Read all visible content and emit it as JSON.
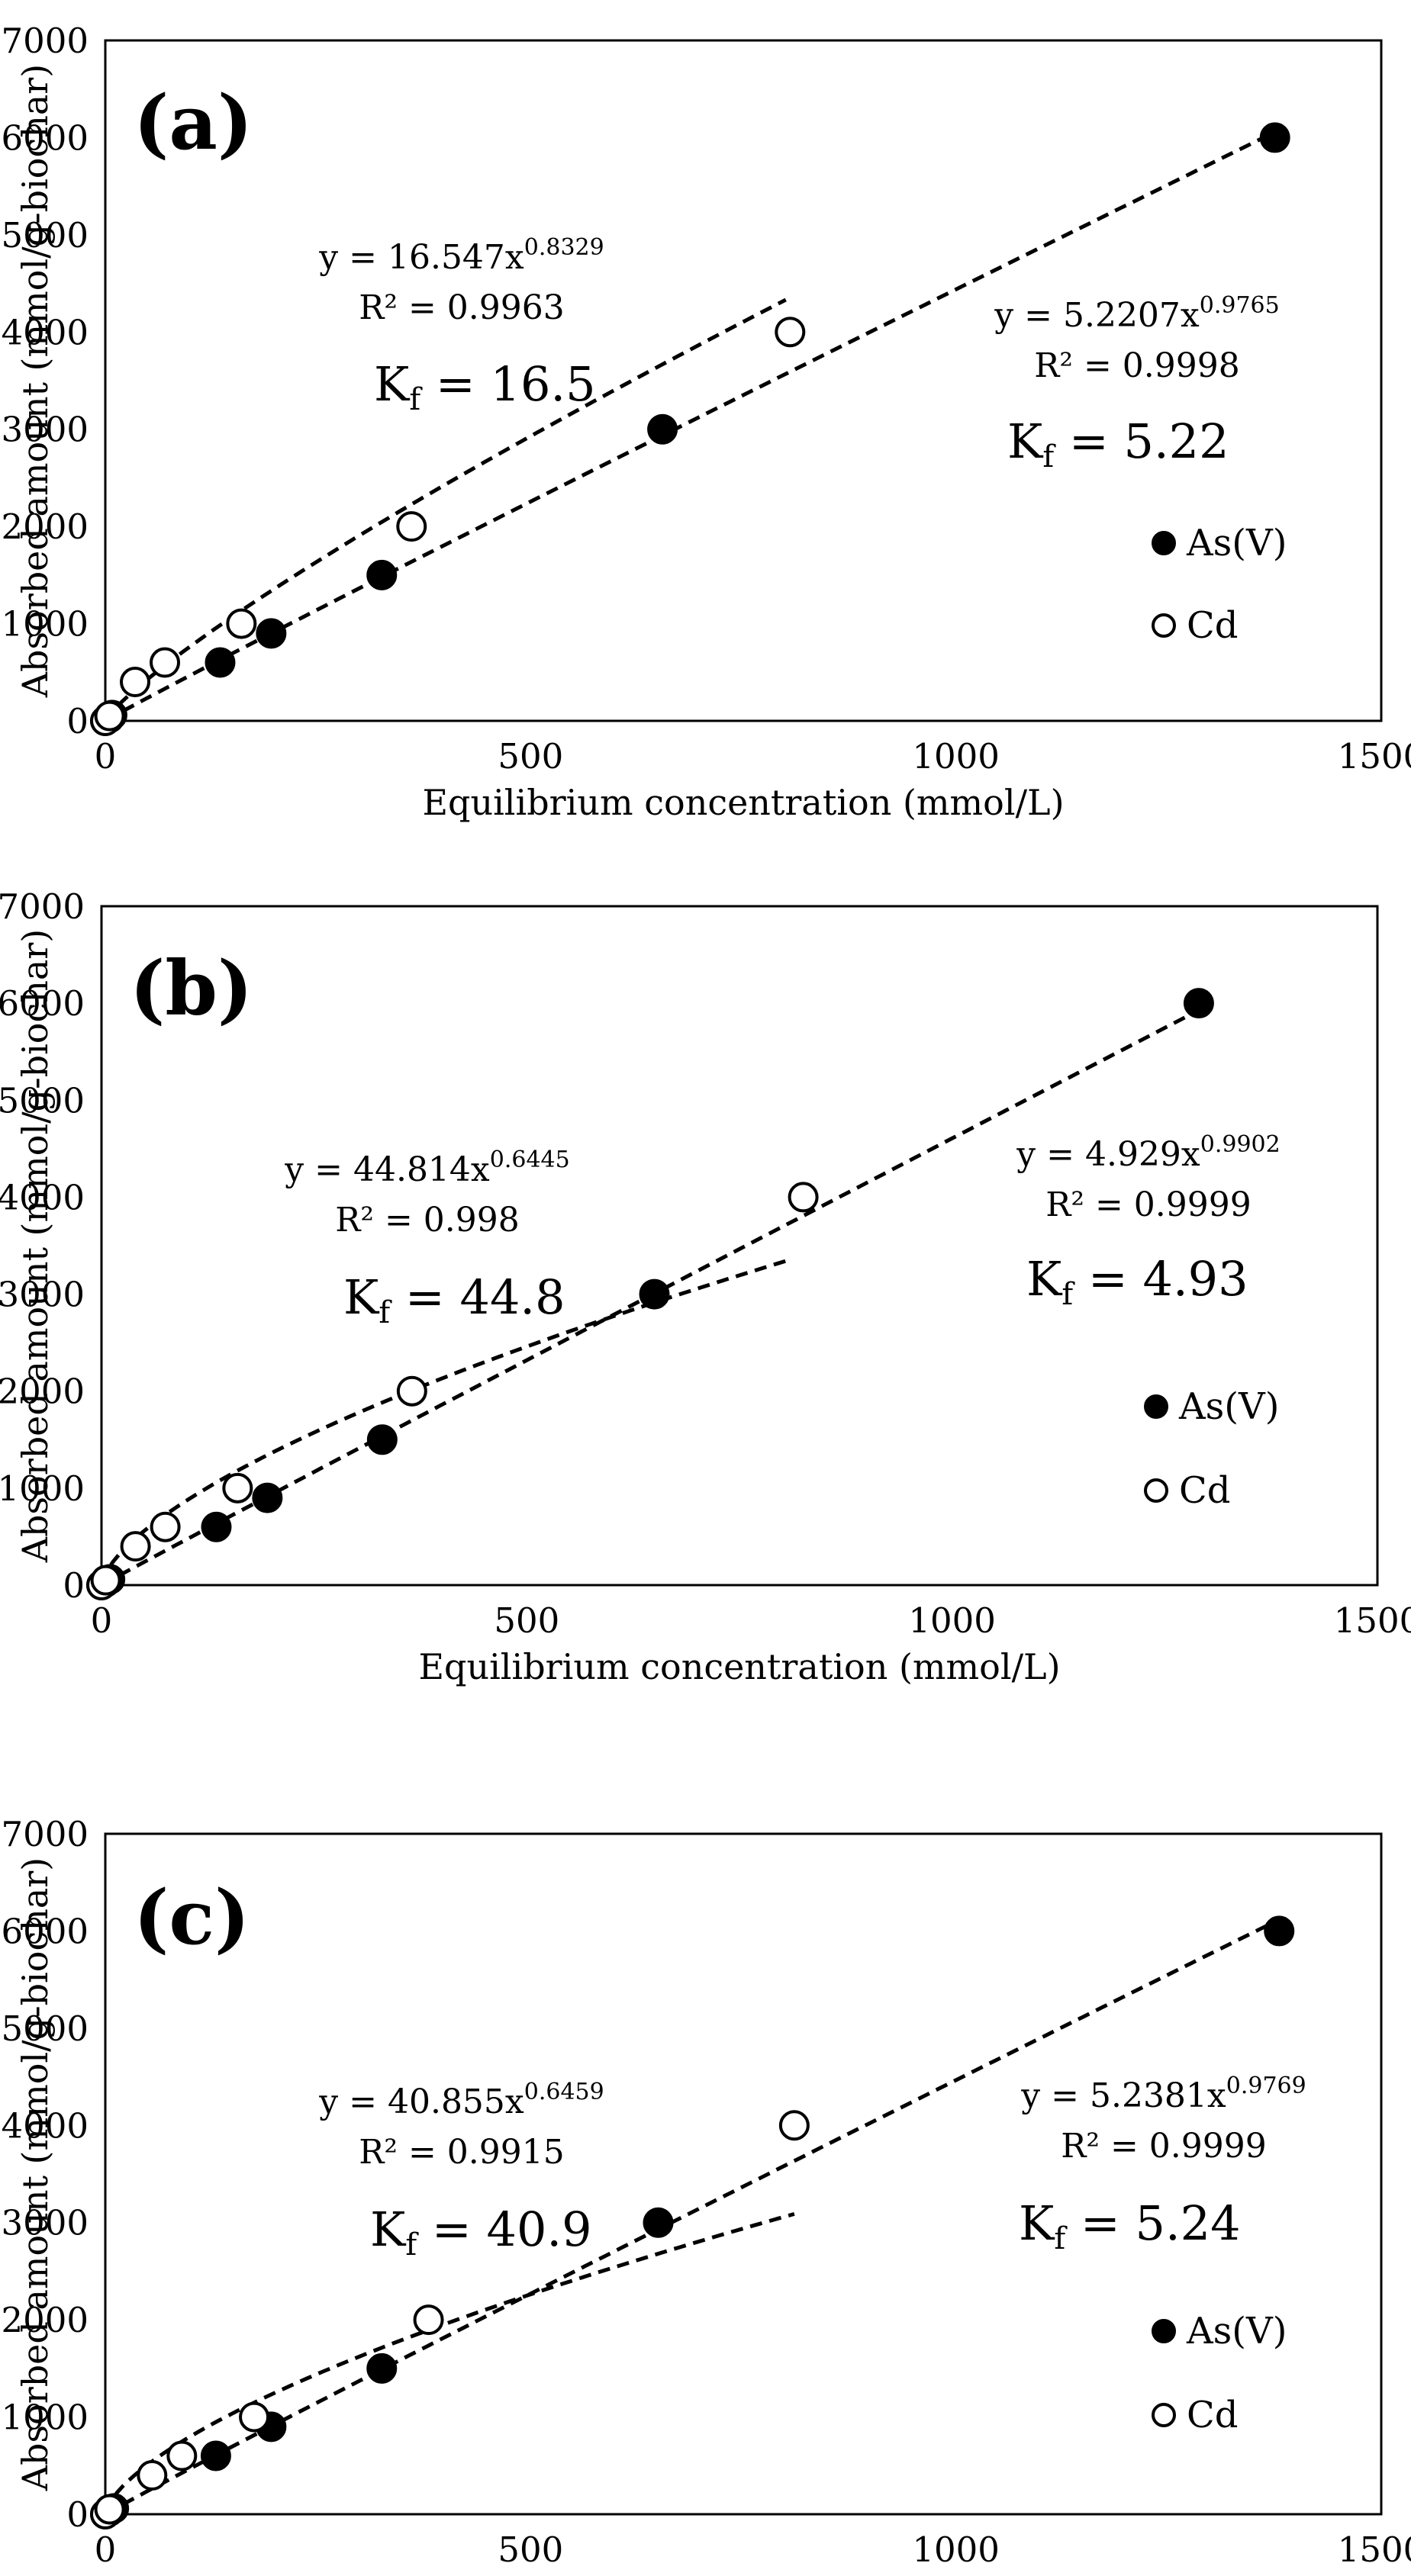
{
  "colors": {
    "ink": "#000000",
    "background": "#ffffff"
  },
  "chart_data": [
    {
      "type": "scatter",
      "panel_label": "(a)",
      "xlabel": "Equilibrium  concentration (mmol/L)",
      "ylabel": "Absorbed amount (mmol/g-biochar)",
      "xlim": [
        0,
        1500
      ],
      "ylim": [
        0,
        7000
      ],
      "xticks": [
        "0",
        "500",
        "1000",
        "1500"
      ],
      "yticks": [
        "0",
        "1000",
        "2000",
        "3000",
        "4000",
        "5000",
        "6000",
        "7000"
      ],
      "grid": false,
      "legend": {
        "position": "right-middle",
        "entries": [
          "As(V)",
          "Cd"
        ]
      },
      "series": [
        {
          "name": "As(V)",
          "marker": "filled-circle",
          "x": [
            0,
            5,
            8,
            135,
            195,
            325,
            655,
            1375
          ],
          "y": [
            0,
            30,
            60,
            600,
            900,
            1500,
            3000,
            6000
          ],
          "fit": {
            "a": 5.2207,
            "b": 0.9765,
            "x_range": [
              0,
              1375
            ]
          },
          "equation": "y = 5.2207x",
          "exponent": "0.9765",
          "r2": "R² = 0.9998",
          "kf": "5.22"
        },
        {
          "name": "Cd",
          "marker": "open-circle",
          "x": [
            0,
            5,
            35,
            70,
            160,
            360,
            805
          ],
          "y": [
            0,
            50,
            400,
            600,
            1000,
            2000,
            4000
          ],
          "fit": {
            "a": 16.547,
            "b": 0.8329,
            "x_range": [
              0,
              800
            ]
          },
          "equation": "y = 16.547x",
          "exponent": "0.8329",
          "r2": "R² = 0.9963",
          "kf": "16.5"
        }
      ]
    },
    {
      "type": "scatter",
      "panel_label": "(b)",
      "xlabel": "Equilibrium  concentration (mmol/L)",
      "ylabel": "Absorbed amount (mmol/g-biochar)",
      "xlim": [
        0,
        1500
      ],
      "ylim": [
        0,
        7000
      ],
      "xticks": [
        "0",
        "500",
        "1000",
        "1500"
      ],
      "yticks": [
        "0",
        "1000",
        "2000",
        "3000",
        "4000",
        "5000",
        "6000",
        "7000"
      ],
      "grid": false,
      "legend": {
        "position": "right-middle",
        "entries": [
          "As(V)",
          "Cd"
        ]
      },
      "series": [
        {
          "name": "As(V)",
          "marker": "filled-circle",
          "x": [
            0,
            5,
            10,
            135,
            195,
            330,
            650,
            1290
          ],
          "y": [
            0,
            30,
            60,
            600,
            900,
            1500,
            3000,
            6000
          ],
          "fit": {
            "a": 4.929,
            "b": 0.9902,
            "x_range": [
              0,
              1290
            ]
          },
          "equation": "y = 4.929x",
          "exponent": "0.9902",
          "r2": "R² = 0.9999",
          "kf": "4.93"
        },
        {
          "name": "Cd",
          "marker": "open-circle",
          "x": [
            0,
            5,
            40,
            75,
            160,
            365,
            825
          ],
          "y": [
            0,
            50,
            400,
            600,
            1000,
            2000,
            4000
          ],
          "fit": {
            "a": 44.814,
            "b": 0.6445,
            "x_range": [
              0,
              810
            ]
          },
          "equation": "y = 44.814x",
          "exponent": "0.6445",
          "r2": "R² = 0.998",
          "kf": "44.8"
        }
      ]
    },
    {
      "type": "scatter",
      "panel_label": "(c)",
      "xlabel": "Equilibrium  concentration (mmol/L)",
      "ylabel": "Absorbed amount (mmol/g-biochar)",
      "xlim": [
        0,
        1500
      ],
      "ylim": [
        0,
        7000
      ],
      "xticks": [
        "0",
        "500",
        "1000",
        "1500"
      ],
      "yticks": [
        "0",
        "1000",
        "2000",
        "3000",
        "4000",
        "5000",
        "6000",
        "7000"
      ],
      "grid": false,
      "legend": {
        "position": "right-middle",
        "entries": [
          "As(V)",
          "Cd"
        ]
      },
      "series": [
        {
          "name": "As(V)",
          "marker": "filled-circle",
          "x": [
            0,
            5,
            10,
            130,
            195,
            325,
            650,
            1380
          ],
          "y": [
            0,
            30,
            60,
            600,
            900,
            1500,
            3000,
            6000
          ],
          "fit": {
            "a": 5.2381,
            "b": 0.9769,
            "x_range": [
              0,
              1380
            ]
          },
          "equation": "y = 5.2381x",
          "exponent": "0.9769",
          "r2": "R² = 0.9999",
          "kf": "5.24"
        },
        {
          "name": "Cd",
          "marker": "open-circle",
          "x": [
            0,
            5,
            55,
            90,
            175,
            380,
            810
          ],
          "y": [
            0,
            50,
            400,
            600,
            1000,
            2000,
            4000
          ],
          "fit": {
            "a": 40.855,
            "b": 0.6459,
            "x_range": [
              0,
              810
            ]
          },
          "equation": "y = 40.855x",
          "exponent": "0.6459",
          "r2": "R² = 0.9915",
          "kf": "40.9"
        }
      ]
    }
  ]
}
